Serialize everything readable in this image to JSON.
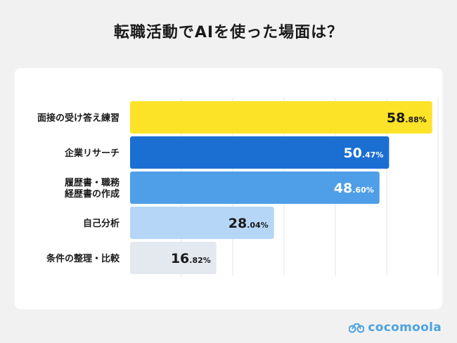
{
  "title": "転職活動でAIを使った場面は？",
  "brand": "cocomoola",
  "chart_data": {
    "type": "bar",
    "orientation": "horizontal",
    "categories": [
      [
        "面接の受け答え練習"
      ],
      [
        "企業リサーチ"
      ],
      [
        "履歴書・職務",
        "経歴書の作成"
      ],
      [
        "自己分析"
      ],
      [
        "条件の整理・比較"
      ]
    ],
    "values": [
      58.88,
      50.47,
      48.6,
      28.04,
      16.82
    ],
    "value_labels": [
      {
        "int": "58",
        "dec": ".88%"
      },
      {
        "int": "50",
        "dec": ".47%"
      },
      {
        "int": "48",
        "dec": ".60%"
      },
      {
        "int": "28",
        "dec": ".04%"
      },
      {
        "int": "16",
        "dec": ".82%"
      }
    ],
    "colors": [
      "#fde328",
      "#1b6fd3",
      "#4f9ee8",
      "#b6d6f8",
      "#e4e8ef"
    ],
    "label_colors": [
      "#1a1a1a",
      "#ffffff",
      "#ffffff",
      "#1a1a1a",
      "#1a1a1a"
    ],
    "xlim": [
      0,
      70
    ],
    "grid": true
  }
}
